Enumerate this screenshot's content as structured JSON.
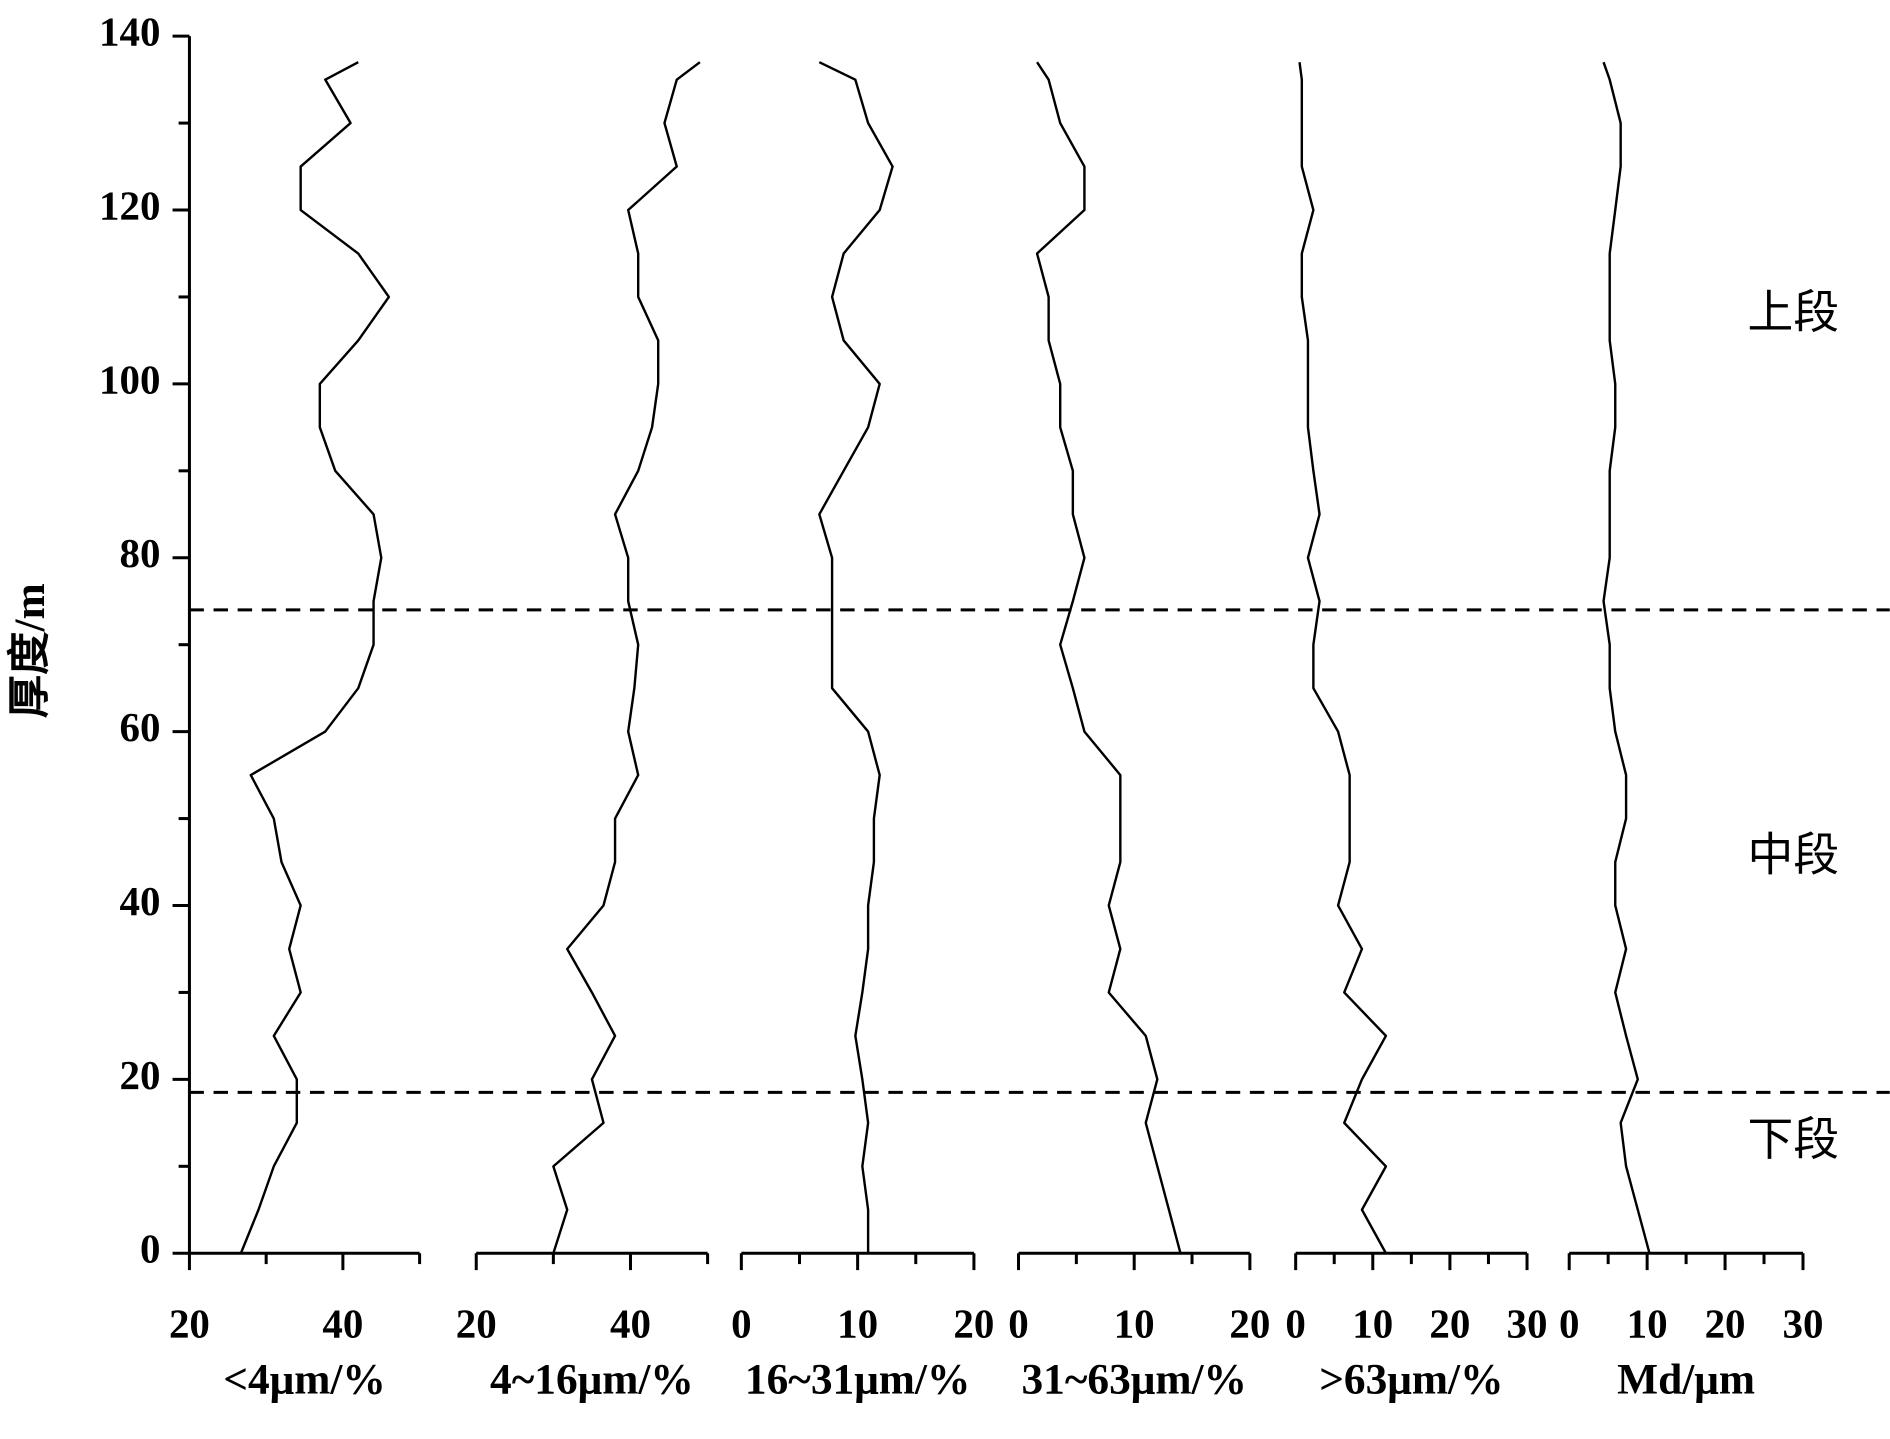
{
  "chart_data": {
    "type": "line",
    "ylabel": "厚度/m",
    "ylim": [
      0,
      140
    ],
    "yticks": [
      0,
      20,
      40,
      60,
      80,
      100,
      120,
      140
    ],
    "yticks_minor": [
      10,
      30,
      50,
      70,
      90,
      110,
      130
    ],
    "boundaries": [
      74,
      18.5
    ],
    "annotations": [
      "上段",
      "中段",
      "下段"
    ],
    "y": [
      0,
      5,
      10,
      15,
      20,
      25,
      30,
      35,
      40,
      45,
      50,
      55,
      60,
      65,
      70,
      75,
      80,
      85,
      90,
      95,
      100,
      105,
      110,
      115,
      120,
      125,
      130,
      135,
      137
    ],
    "panels": [
      {
        "xlabel": "<4μm/%",
        "xlim": [
          20,
          50
        ],
        "xticks": [
          20,
          40
        ],
        "xticks_minor": [
          30,
          50
        ],
        "values": [
          26.7,
          29,
          31,
          34,
          34,
          31,
          34.5,
          33,
          34.5,
          32,
          31,
          28,
          37.7,
          42,
          44,
          44,
          45,
          44,
          39,
          37,
          37,
          42,
          46,
          42,
          34.5,
          34.5,
          41,
          37.7,
          42
        ]
      },
      {
        "xlabel": "4~16μm/%",
        "xlim": [
          20,
          50
        ],
        "xticks": [
          20,
          40
        ],
        "xticks_minor": [
          30,
          50
        ],
        "values": [
          30,
          31.8,
          30,
          36.5,
          35,
          38,
          35,
          31.8,
          36.5,
          38,
          38,
          41,
          39.7,
          40.5,
          41,
          39.7,
          39.7,
          38,
          41,
          42.8,
          43.6,
          43.6,
          41,
          41,
          39.7,
          46,
          44.4,
          46,
          49
        ]
      },
      {
        "xlabel": "16~31μm/%",
        "xlim": [
          0,
          20
        ],
        "xticks": [
          0,
          10,
          20
        ],
        "xticks_minor": [
          5,
          15
        ],
        "values": [
          10.9,
          10.9,
          10.4,
          10.9,
          10.4,
          9.8,
          10.4,
          10.9,
          10.9,
          11.4,
          11.4,
          11.9,
          10.9,
          7.8,
          7.8,
          7.8,
          7.8,
          6.7,
          8.8,
          10.9,
          11.9,
          8.8,
          7.8,
          8.8,
          11.9,
          13,
          10.9,
          9.8,
          6.7
        ]
      },
      {
        "xlabel": "31~63μm/%",
        "xlim": [
          0,
          20
        ],
        "xticks": [
          0,
          10,
          20
        ],
        "xticks_minor": [
          5,
          15
        ],
        "values": [
          14,
          13,
          12,
          11,
          12,
          11,
          7.8,
          8.8,
          7.8,
          8.8,
          8.8,
          8.8,
          5.7,
          4.7,
          3.6,
          4.7,
          5.7,
          4.7,
          4.7,
          3.6,
          3.6,
          2.6,
          2.6,
          1.6,
          5.7,
          5.7,
          3.6,
          2.6,
          1.6
        ]
      },
      {
        "xlabel": ">63μm/%",
        "xlim": [
          0,
          30
        ],
        "xticks": [
          0,
          10,
          20,
          30
        ],
        "xticks_minor": [
          5,
          15,
          25
        ],
        "values": [
          11.7,
          8.6,
          11.7,
          6.3,
          8.6,
          11.7,
          6.3,
          8.6,
          5.5,
          7,
          7,
          7,
          5.5,
          2.3,
          2.3,
          3.1,
          1.6,
          3.1,
          2.3,
          1.6,
          1.6,
          1.6,
          0.8,
          0.8,
          2.3,
          0.8,
          0.8,
          0.8,
          0.5
        ]
      },
      {
        "xlabel": "Md/μm",
        "xlim": [
          0,
          30
        ],
        "xticks": [
          0,
          10,
          20,
          30
        ],
        "xticks_minor": [
          5,
          15,
          25
        ],
        "values": [
          10.3,
          8.8,
          7.3,
          6.6,
          8.8,
          7.3,
          5.9,
          7.3,
          5.9,
          5.9,
          7.3,
          7.3,
          5.9,
          5.2,
          5.2,
          4.4,
          5.2,
          5.2,
          5.2,
          5.9,
          5.9,
          5.2,
          5.2,
          5.2,
          5.9,
          6.6,
          6.6,
          5.2,
          4.4
        ]
      }
    ]
  }
}
